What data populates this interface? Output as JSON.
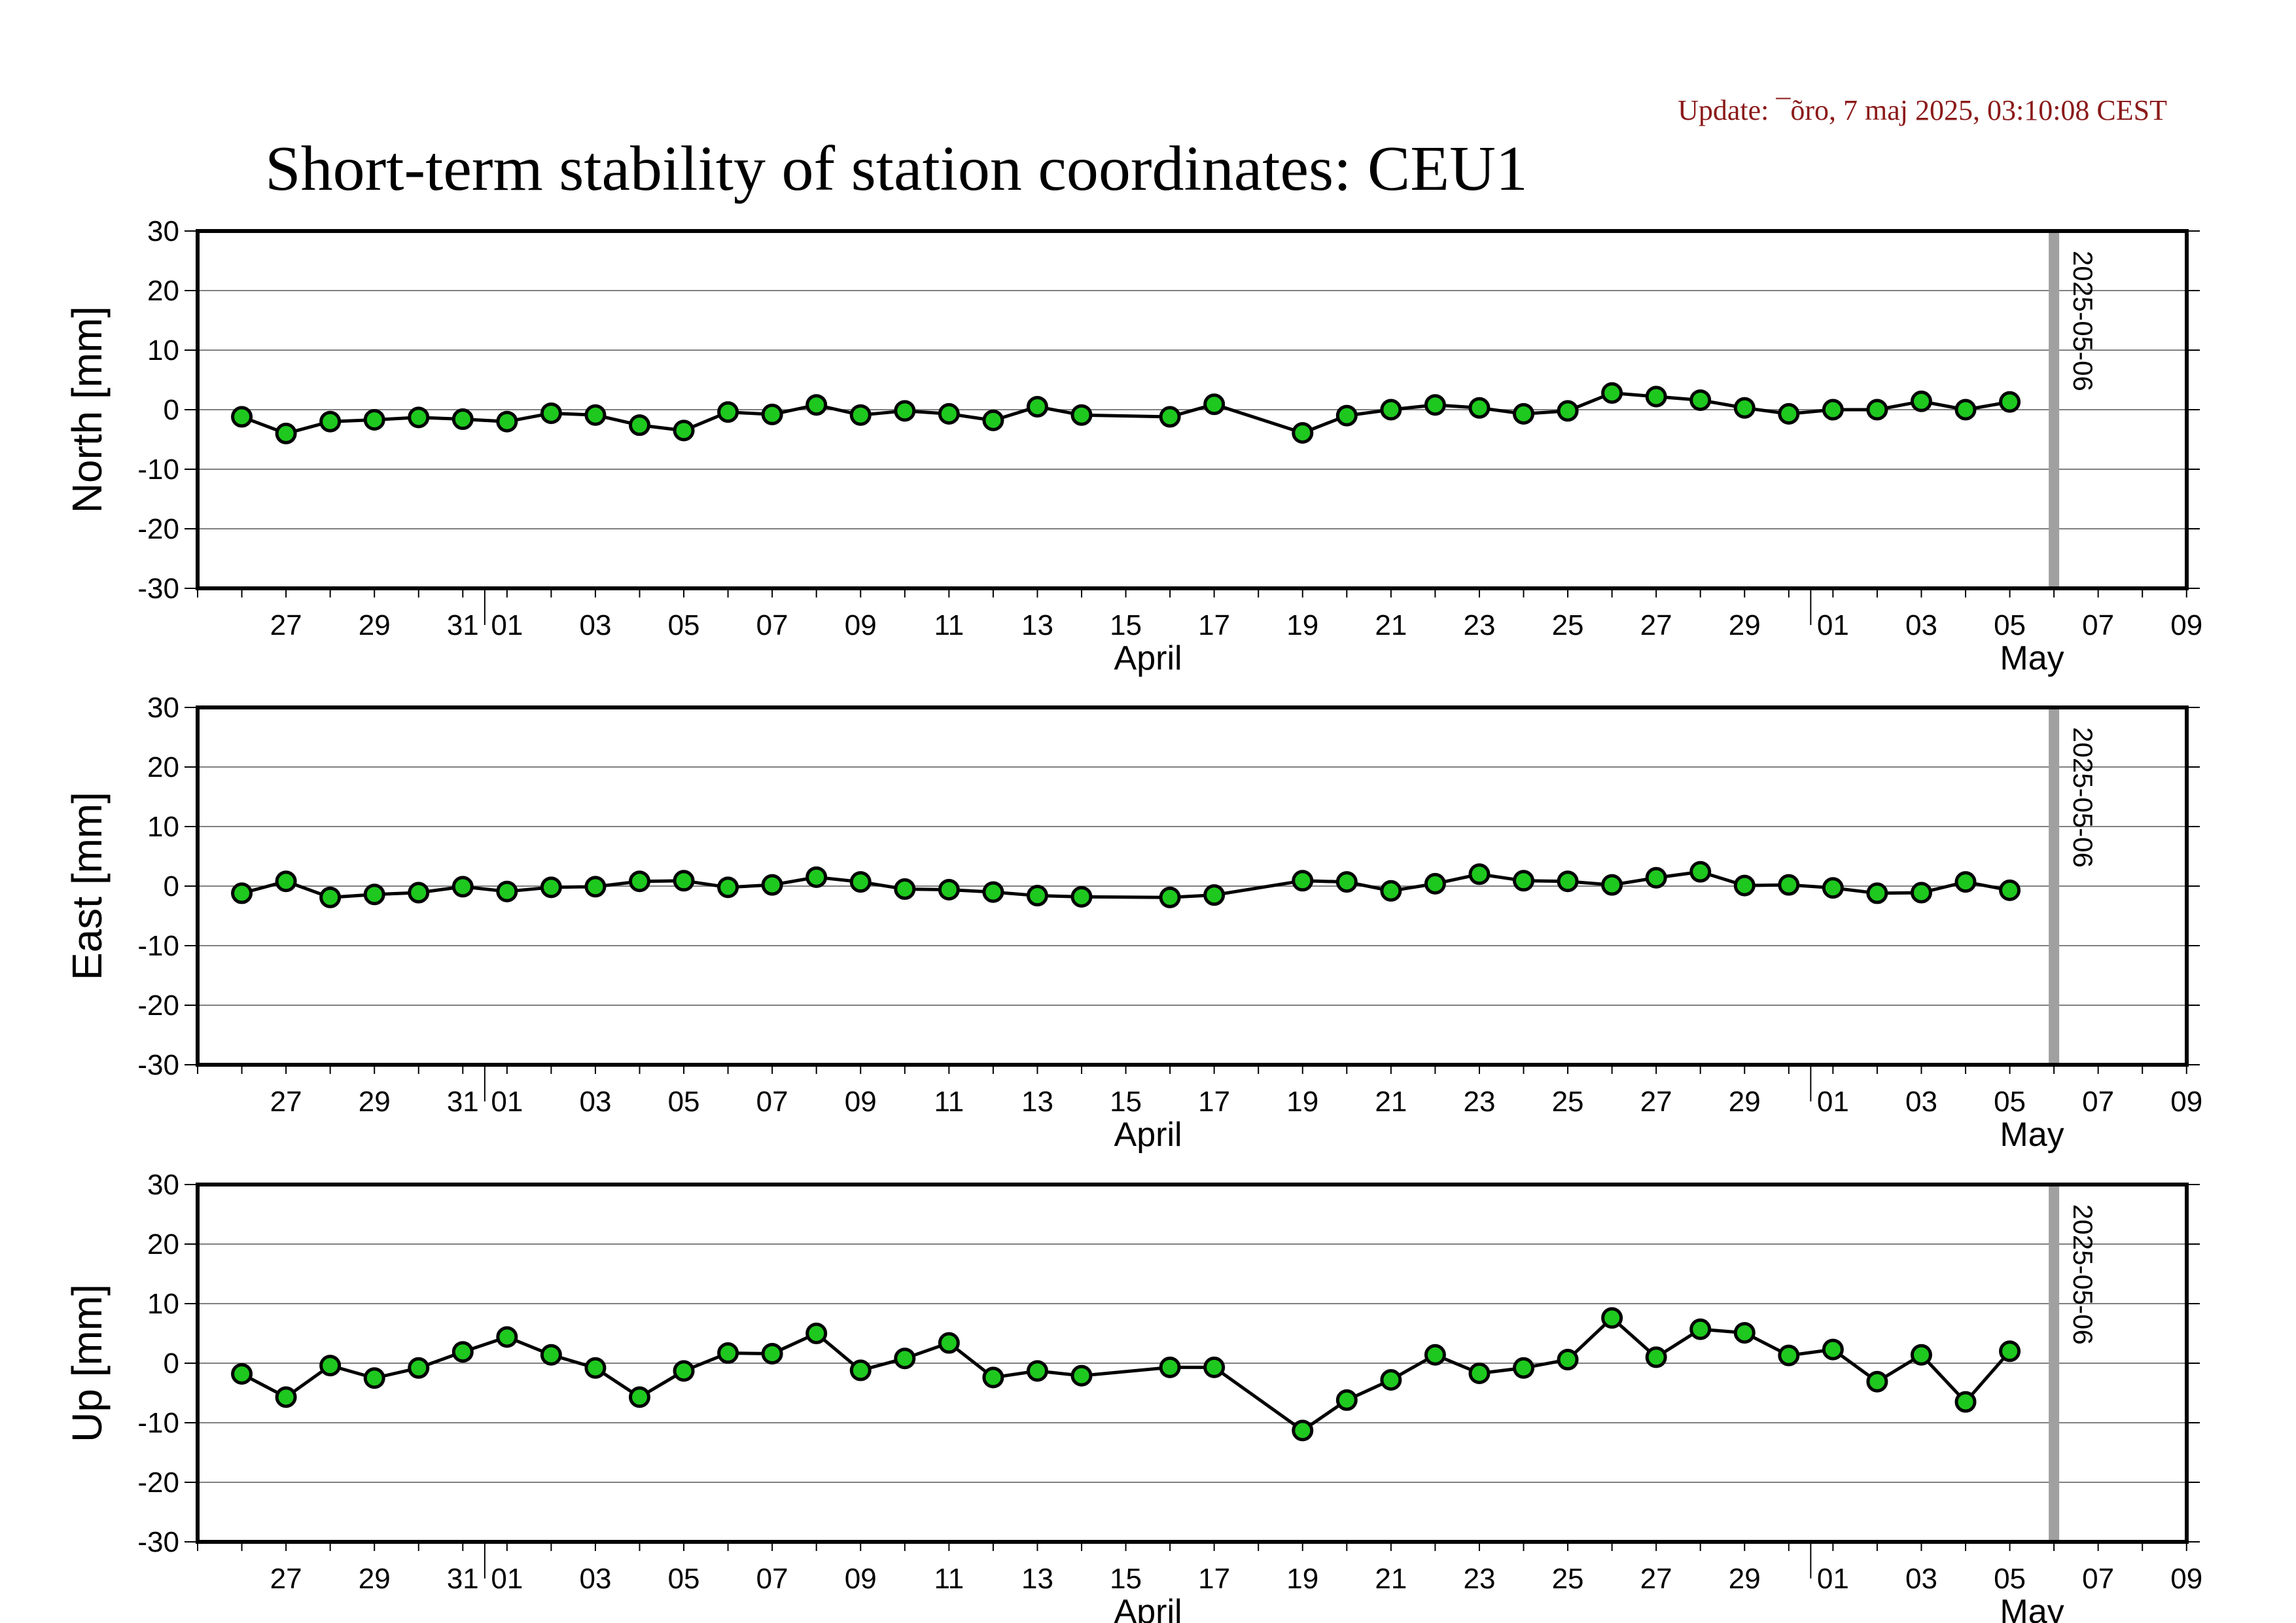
{
  "update_text": "Update: ¯õro, 7 maj 2025, 03:10:08 CEST",
  "title": "Short-term stability of station coordinates: CEU1",
  "colors": {
    "update_text": "#8b1a1a",
    "marker_fill": "#1ec81e",
    "marker_stroke": "#000000",
    "line": "#000000",
    "grid": "#808080",
    "today_line": "#a0a0a0"
  },
  "x_axis": {
    "start": "2025-03-25",
    "end": "2025-05-10",
    "tick_labels": [
      "27",
      "29",
      "31",
      "01",
      "03",
      "05",
      "07",
      "09",
      "11",
      "13",
      "15",
      "17",
      "19",
      "21",
      "23",
      "25",
      "27",
      "29",
      "01",
      "03",
      "05",
      "07",
      "09"
    ],
    "month_labels": [
      {
        "label": "April",
        "date": "2025-04-15"
      },
      {
        "label": "May",
        "date": "2025-05-05"
      }
    ]
  },
  "today": {
    "date": "2025-05-06",
    "label": "2025-05-06"
  },
  "chart_data": [
    {
      "type": "scatter",
      "ylabel": "North [mm]",
      "ylim": [
        -30,
        30
      ],
      "yticks": [
        "30",
        "20",
        "10",
        "0",
        "-10",
        "-20",
        "-30"
      ],
      "grid": true,
      "x": [
        "2025-03-26",
        "2025-03-27",
        "2025-03-28",
        "2025-03-29",
        "2025-03-30",
        "2025-03-31",
        "2025-04-01",
        "2025-04-02",
        "2025-04-03",
        "2025-04-04",
        "2025-04-05",
        "2025-04-06",
        "2025-04-07",
        "2025-04-08",
        "2025-04-09",
        "2025-04-10",
        "2025-04-11",
        "2025-04-12",
        "2025-04-13",
        "2025-04-14",
        "2025-04-16",
        "2025-04-17",
        "2025-04-19",
        "2025-04-20",
        "2025-04-21",
        "2025-04-22",
        "2025-04-23",
        "2025-04-24",
        "2025-04-25",
        "2025-04-26",
        "2025-04-27",
        "2025-04-28",
        "2025-04-29",
        "2025-04-30",
        "2025-05-01",
        "2025-05-02",
        "2025-05-03",
        "2025-05-04",
        "2025-05-05"
      ],
      "y": [
        -1.2,
        -4.0,
        -2.0,
        -1.7,
        -1.3,
        -1.6,
        -2.0,
        -0.6,
        -0.9,
        -2.6,
        -3.5,
        -0.4,
        -0.8,
        0.8,
        -0.9,
        -0.2,
        -0.7,
        -1.8,
        0.5,
        -0.9,
        -1.2,
        0.9,
        -3.9,
        -1.0,
        0.0,
        0.8,
        0.3,
        -0.7,
        -0.2,
        2.8,
        2.2,
        1.6,
        0.3,
        -0.7,
        0.0,
        0.0,
        1.4,
        0.0,
        1.3
      ]
    },
    {
      "type": "scatter",
      "ylabel": "East [mm]",
      "ylim": [
        -30,
        30
      ],
      "yticks": [
        "30",
        "20",
        "10",
        "0",
        "-10",
        "-20",
        "-30"
      ],
      "grid": true,
      "x": [
        "2025-03-26",
        "2025-03-27",
        "2025-03-28",
        "2025-03-29",
        "2025-03-30",
        "2025-03-31",
        "2025-04-01",
        "2025-04-02",
        "2025-04-03",
        "2025-04-04",
        "2025-04-05",
        "2025-04-06",
        "2025-04-07",
        "2025-04-08",
        "2025-04-09",
        "2025-04-10",
        "2025-04-11",
        "2025-04-12",
        "2025-04-13",
        "2025-04-14",
        "2025-04-16",
        "2025-04-17",
        "2025-04-19",
        "2025-04-20",
        "2025-04-21",
        "2025-04-22",
        "2025-04-23",
        "2025-04-24",
        "2025-04-25",
        "2025-04-26",
        "2025-04-27",
        "2025-04-28",
        "2025-04-29",
        "2025-04-30",
        "2025-05-01",
        "2025-05-02",
        "2025-05-03",
        "2025-05-04",
        "2025-05-05"
      ],
      "y": [
        -1.2,
        0.8,
        -1.9,
        -1.4,
        -1.1,
        -0.1,
        -0.9,
        -0.2,
        -0.1,
        0.8,
        0.9,
        -0.2,
        0.2,
        1.5,
        0.7,
        -0.5,
        -0.6,
        -1.0,
        -1.6,
        -1.8,
        -1.9,
        -1.5,
        0.9,
        0.7,
        -0.8,
        0.4,
        2.0,
        0.9,
        0.8,
        0.2,
        1.4,
        2.4,
        0.1,
        0.2,
        -0.3,
        -1.2,
        -1.1,
        0.7,
        -0.7
      ]
    },
    {
      "type": "scatter",
      "ylabel": "Up [mm]",
      "ylim": [
        -30,
        30
      ],
      "yticks": [
        "30",
        "20",
        "10",
        "0",
        "-10",
        "-20",
        "-30"
      ],
      "grid": true,
      "x": [
        "2025-03-26",
        "2025-03-27",
        "2025-03-28",
        "2025-03-29",
        "2025-03-30",
        "2025-03-31",
        "2025-04-01",
        "2025-04-02",
        "2025-04-03",
        "2025-04-04",
        "2025-04-05",
        "2025-04-06",
        "2025-04-07",
        "2025-04-08",
        "2025-04-09",
        "2025-04-10",
        "2025-04-11",
        "2025-04-12",
        "2025-04-13",
        "2025-04-14",
        "2025-04-16",
        "2025-04-17",
        "2025-04-19",
        "2025-04-20",
        "2025-04-21",
        "2025-04-22",
        "2025-04-23",
        "2025-04-24",
        "2025-04-25",
        "2025-04-26",
        "2025-04-27",
        "2025-04-28",
        "2025-04-29",
        "2025-04-30",
        "2025-05-01",
        "2025-05-02",
        "2025-05-03",
        "2025-05-04",
        "2025-05-05"
      ],
      "y": [
        -1.8,
        -5.7,
        -0.4,
        -2.5,
        -0.8,
        1.9,
        4.4,
        1.4,
        -0.8,
        -5.7,
        -1.3,
        1.7,
        1.6,
        5.0,
        -1.2,
        0.8,
        3.4,
        -2.4,
        -1.3,
        -2.1,
        -0.7,
        -0.7,
        -11.3,
        -6.2,
        -2.8,
        1.4,
        -1.7,
        -0.8,
        0.6,
        7.6,
        1.0,
        5.7,
        5.1,
        1.3,
        2.3,
        -3.1,
        1.4,
        -6.5,
        2.0
      ]
    }
  ]
}
